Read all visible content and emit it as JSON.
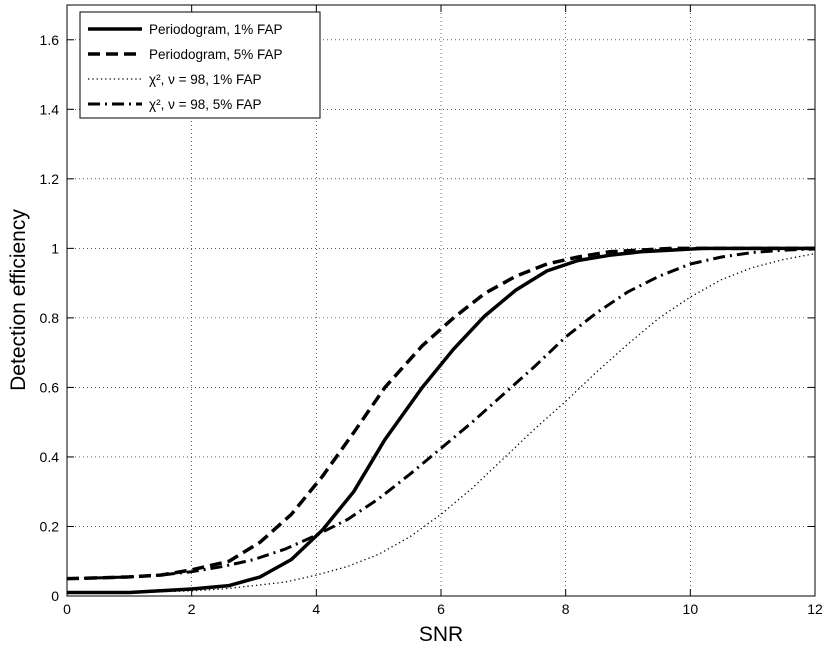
{
  "chart_data": {
    "type": "line",
    "xlabel": "SNR",
    "ylabel": "Detection efficiency",
    "xlim": [
      0,
      12
    ],
    "ylim": [
      0,
      1.7
    ],
    "xticks": [
      "0",
      "2",
      "4",
      "6",
      "8",
      "10",
      "12"
    ],
    "yticks": [
      "0",
      "0.2",
      "0.4",
      "0.6",
      "0.8",
      "1",
      "1.2",
      "1.4",
      "1.6"
    ],
    "grid": true,
    "legend_position": "top-left",
    "series": [
      {
        "name": "Periodogram, 1% FAP",
        "style": "solid",
        "x": [
          0,
          0.5,
          1,
          1.5,
          2,
          2.6,
          3.1,
          3.6,
          4.1,
          4.6,
          5.1,
          5.7,
          6.2,
          6.7,
          7.2,
          7.7,
          8.2,
          8.7,
          9.2,
          9.7,
          10.2,
          10.7,
          11.2,
          11.7,
          12
        ],
        "y": [
          0.01,
          0.01,
          0.01,
          0.015,
          0.02,
          0.03,
          0.055,
          0.105,
          0.19,
          0.3,
          0.45,
          0.6,
          0.71,
          0.805,
          0.88,
          0.935,
          0.965,
          0.98,
          0.99,
          0.995,
          1.0,
          1.0,
          1.0,
          1.0,
          1.0
        ]
      },
      {
        "name": "Periodogram, 5% FAP",
        "style": "dashed",
        "x": [
          0,
          0.5,
          1,
          1.5,
          2,
          2.6,
          3.1,
          3.6,
          4.1,
          4.6,
          5.1,
          5.7,
          6.2,
          6.7,
          7.2,
          7.7,
          8.2,
          8.7,
          9.2,
          9.7,
          10.2,
          10.7,
          11.2,
          11.7,
          12
        ],
        "y": [
          0.05,
          0.052,
          0.055,
          0.06,
          0.075,
          0.1,
          0.155,
          0.235,
          0.345,
          0.47,
          0.6,
          0.72,
          0.8,
          0.87,
          0.92,
          0.955,
          0.975,
          0.99,
          0.995,
          1.0,
          1.0,
          1.0,
          1.0,
          1.0,
          1.0
        ]
      },
      {
        "name": "χ², ν = 98, 1% FAP",
        "style": "dotted",
        "x": [
          0,
          0.5,
          1,
          1.5,
          2,
          2.5,
          3,
          3.5,
          4,
          4.5,
          5,
          5.5,
          6,
          6.5,
          7,
          7.5,
          8,
          8.5,
          9,
          9.5,
          10,
          10.5,
          11,
          11.5,
          12
        ],
        "y": [
          0.01,
          0.01,
          0.01,
          0.012,
          0.015,
          0.02,
          0.03,
          0.04,
          0.06,
          0.085,
          0.12,
          0.17,
          0.235,
          0.31,
          0.395,
          0.48,
          0.56,
          0.645,
          0.725,
          0.8,
          0.86,
          0.91,
          0.945,
          0.968,
          0.985
        ]
      },
      {
        "name": "χ², ν = 98, 5% FAP",
        "style": "dashdot",
        "x": [
          0,
          0.5,
          1,
          1.5,
          2,
          2.5,
          3,
          3.5,
          4,
          4.5,
          5,
          5.5,
          6,
          6.5,
          7,
          7.5,
          8,
          8.5,
          9,
          9.5,
          10,
          10.5,
          11,
          11.5,
          12
        ],
        "y": [
          0.05,
          0.052,
          0.055,
          0.06,
          0.07,
          0.085,
          0.105,
          0.135,
          0.175,
          0.22,
          0.28,
          0.35,
          0.425,
          0.5,
          0.58,
          0.66,
          0.745,
          0.815,
          0.875,
          0.92,
          0.955,
          0.975,
          0.988,
          0.995,
          0.998
        ]
      }
    ]
  }
}
